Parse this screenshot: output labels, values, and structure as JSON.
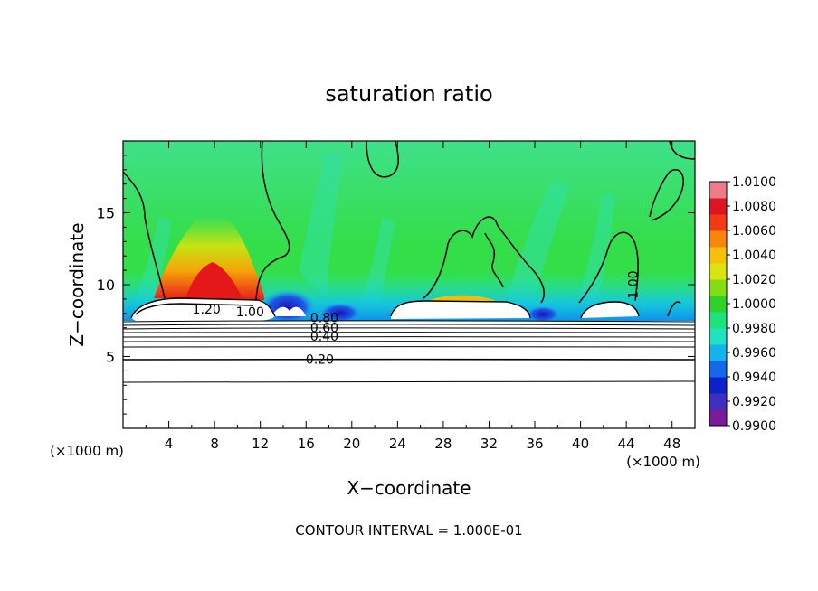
{
  "chart_data": {
    "type": "heatmap",
    "title": "saturation ratio",
    "xlabel": "X−coordinate",
    "ylabel": "Z−coordinate",
    "x_unit_left": "(×1000 m)",
    "x_unit_right": "(×1000 m)",
    "footer": "CONTOUR INTERVAL = 1.000E-01",
    "xlim": [
      0,
      50
    ],
    "ylim": [
      0,
      20
    ],
    "x_ticks": [
      4,
      8,
      12,
      16,
      20,
      24,
      28,
      32,
      36,
      40,
      44,
      48
    ],
    "y_ticks": [
      5,
      10,
      15
    ],
    "colorbar": {
      "min": 0.99,
      "max": 1.01,
      "labels": [
        "1.0100",
        "1.0080",
        "1.0060",
        "1.0040",
        "1.0020",
        "1.0000",
        "0.9980",
        "0.9960",
        "0.9940",
        "0.9920",
        "0.9900"
      ],
      "colors": [
        "#7a1a9c",
        "#3f2fc0",
        "#0a22c8",
        "#1468ec",
        "#12b4ee",
        "#1ee2c2",
        "#1ee27a",
        "#2ed22a",
        "#84dc12",
        "#d8e40e",
        "#f6c008",
        "#f8860a",
        "#f43a12",
        "#de1420",
        "#ec7c86"
      ]
    },
    "contour_labels": [
      {
        "text": "0.20",
        "x": 17.2,
        "y": 4.8
      },
      {
        "text": "0.40",
        "x": 17.6,
        "y": 6.4
      },
      {
        "text": "0.60",
        "x": 17.6,
        "y": 7.0
      },
      {
        "text": "0.80",
        "x": 17.6,
        "y": 7.7
      },
      {
        "text": "1.20",
        "x": 7.3,
        "y": 8.3
      },
      {
        "text": "1.00",
        "x": 11.1,
        "y": 8.1
      },
      {
        "text": "1.00",
        "x": 44.6,
        "y": 10.0
      }
    ]
  }
}
